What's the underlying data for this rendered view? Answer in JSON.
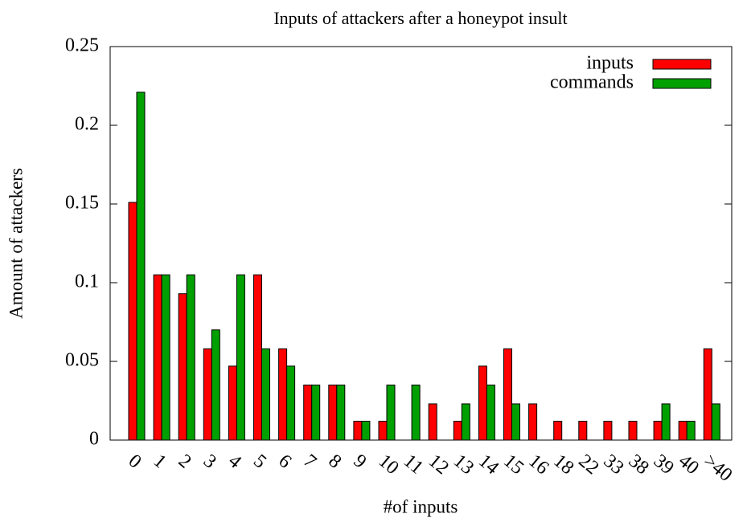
{
  "chart_data": {
    "type": "bar",
    "title": "Inputs of attackers after a honeypot insult",
    "x_label": "#of inputs",
    "y_label": "Amount of attackers",
    "categories": [
      "0",
      "1",
      "2",
      "3",
      "4",
      "5",
      "6",
      "7",
      "8",
      "9",
      "10",
      "11",
      "12",
      "13",
      "14",
      "15",
      "16",
      "18",
      "22",
      "33",
      "38",
      "39",
      "40",
      ">40"
    ],
    "series": [
      {
        "name": "inputs",
        "color": "#ff0000",
        "values": [
          0.151,
          0.105,
          0.093,
          0.058,
          0.047,
          0.105,
          0.058,
          0.035,
          0.035,
          0.012,
          0.012,
          0,
          0.023,
          0.012,
          0.047,
          0.058,
          0.023,
          0.012,
          0.012,
          0.012,
          0.012,
          0.012,
          0.012,
          0.058
        ]
      },
      {
        "name": "commands",
        "color": "#00a000",
        "values": [
          0.221,
          0.105,
          0.105,
          0.07,
          0.105,
          0.058,
          0.047,
          0.035,
          0.035,
          0.012,
          0.035,
          0.035,
          0,
          0.023,
          0.035,
          0.023,
          0,
          0,
          0,
          0,
          0,
          0.023,
          0.012,
          0.023
        ]
      }
    ],
    "ylim": [
      0,
      0.25
    ],
    "yticks": [
      0,
      0.05,
      0.1,
      0.15,
      0.2,
      0.25
    ],
    "legend": "top-right"
  }
}
